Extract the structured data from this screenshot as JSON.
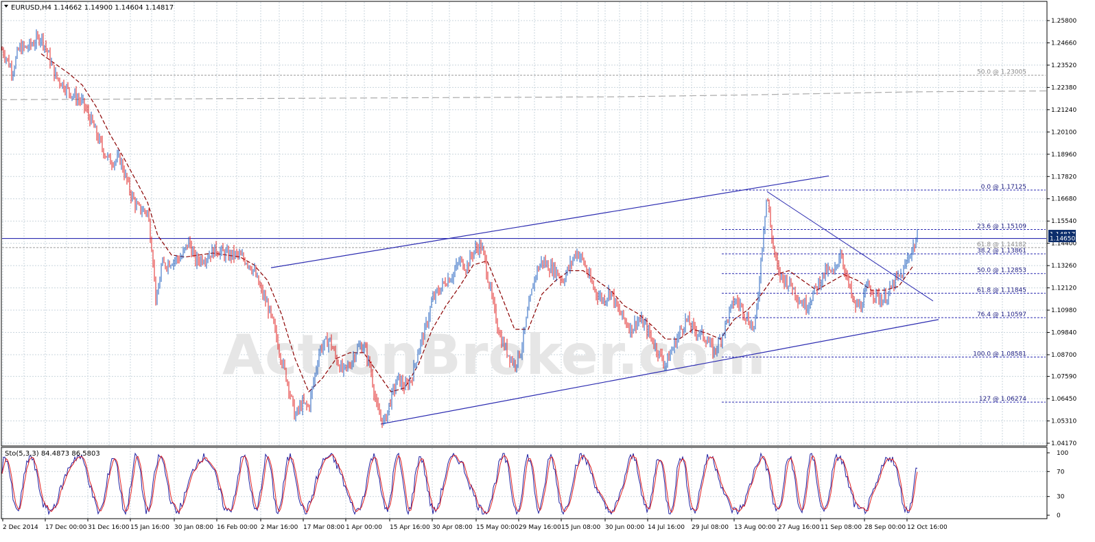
{
  "chart_data": [
    {
      "type": "candlestick",
      "title": "EURUSD,H4  1.14662 1.14900 1.14604 1.14817",
      "header": {
        "symbol": "EURUSD,H4",
        "ohlc": "1.14662 1.14900 1.14604 1.14817"
      },
      "y_ticks": [
        "1.25800",
        "1.24660",
        "1.23520",
        "1.22380",
        "1.21240",
        "1.20100",
        "1.18960",
        "1.17820",
        "1.16680",
        "1.15540",
        "1.14400",
        "1.13260",
        "1.12120",
        "1.10980",
        "1.09840",
        "1.08700",
        "1.07590",
        "1.06450",
        "1.05310",
        "1.04170"
      ],
      "ylim": [
        1.0417,
        1.258
      ],
      "x_ticks": [
        "2 Dec 2014",
        "17 Dec 00:00",
        "31 Dec 16:00",
        "15 Jan 16:00",
        "30 Jan 08:00",
        "16 Feb 00:00",
        "2 Mar 16:00",
        "17 Mar 08:00",
        "1 Apr 00:00",
        "15 Apr 16:00",
        "30 Apr 08:00",
        "15 May 00:00",
        "29 May 16:00",
        "15 Jun 08:00",
        "30 Jun 00:00",
        "14 Jul 16:00",
        "29 Jul 08:00",
        "13 Aug 00:00",
        "27 Aug 16:00",
        "11 Sep 08:00",
        "28 Sep 00:00",
        "12 Oct 16:00"
      ],
      "current_price": "1.14650",
      "current_price_overlap": "1.14817",
      "price_path": [
        [
          0,
          1.245
        ],
        [
          8,
          1.24
        ],
        [
          18,
          1.232
        ],
        [
          28,
          1.244
        ],
        [
          40,
          1.244
        ],
        [
          50,
          1.247
        ],
        [
          60,
          1.25
        ],
        [
          68,
          1.243
        ],
        [
          80,
          1.23
        ],
        [
          100,
          1.222
        ],
        [
          120,
          1.216
        ],
        [
          135,
          1.205
        ],
        [
          140,
          1.2
        ],
        [
          150,
          1.192
        ],
        [
          160,
          1.186
        ],
        [
          175,
          1.187
        ],
        [
          190,
          1.17
        ],
        [
          200,
          1.162
        ],
        [
          215,
          1.16
        ],
        [
          222,
          1.14
        ],
        [
          228,
          1.112
        ],
        [
          235,
          1.132
        ],
        [
          250,
          1.135
        ],
        [
          265,
          1.137
        ],
        [
          275,
          1.145
        ],
        [
          285,
          1.135
        ],
        [
          300,
          1.137
        ],
        [
          315,
          1.141
        ],
        [
          330,
          1.138
        ],
        [
          345,
          1.138
        ],
        [
          360,
          1.135
        ],
        [
          370,
          1.13
        ],
        [
          380,
          1.12
        ],
        [
          390,
          1.112
        ],
        [
          400,
          1.1
        ],
        [
          410,
          1.085
        ],
        [
          420,
          1.072
        ],
        [
          430,
          1.055
        ],
        [
          440,
          1.062
        ],
        [
          450,
          1.06
        ],
        [
          458,
          1.075
        ],
        [
          466,
          1.09
        ],
        [
          480,
          1.095
        ],
        [
          490,
          1.085
        ],
        [
          500,
          1.078
        ],
        [
          510,
          1.082
        ],
        [
          520,
          1.09
        ],
        [
          530,
          1.092
        ],
        [
          540,
          1.08
        ],
        [
          550,
          1.058
        ],
        [
          560,
          1.052
        ],
        [
          570,
          1.065
        ],
        [
          580,
          1.075
        ],
        [
          590,
          1.07
        ],
        [
          600,
          1.075
        ],
        [
          610,
          1.09
        ],
        [
          620,
          1.1
        ],
        [
          630,
          1.115
        ],
        [
          640,
          1.12
        ],
        [
          650,
          1.125
        ],
        [
          660,
          1.128
        ],
        [
          670,
          1.135
        ],
        [
          680,
          1.132
        ],
        [
          690,
          1.14
        ],
        [
          700,
          1.143
        ],
        [
          705,
          1.138
        ],
        [
          712,
          1.125
        ],
        [
          720,
          1.11
        ],
        [
          730,
          1.095
        ],
        [
          740,
          1.088
        ],
        [
          750,
          1.082
        ],
        [
          760,
          1.09
        ],
        [
          770,
          1.11
        ],
        [
          780,
          1.128
        ],
        [
          790,
          1.135
        ],
        [
          800,
          1.132
        ],
        [
          810,
          1.13
        ],
        [
          820,
          1.125
        ],
        [
          830,
          1.132
        ],
        [
          840,
          1.14
        ],
        [
          850,
          1.135
        ],
        [
          860,
          1.125
        ],
        [
          870,
          1.118
        ],
        [
          880,
          1.115
        ],
        [
          890,
          1.12
        ],
        [
          900,
          1.11
        ],
        [
          910,
          1.105
        ],
        [
          920,
          1.1
        ],
        [
          930,
          1.105
        ],
        [
          940,
          1.102
        ],
        [
          950,
          1.095
        ],
        [
          960,
          1.088
        ],
        [
          970,
          1.082
        ],
        [
          980,
          1.09
        ],
        [
          990,
          1.098
        ],
        [
          1000,
          1.105
        ],
        [
          1010,
          1.1
        ],
        [
          1020,
          1.098
        ],
        [
          1030,
          1.095
        ],
        [
          1040,
          1.088
        ],
        [
          1050,
          1.095
        ],
        [
          1060,
          1.105
        ],
        [
          1070,
          1.115
        ],
        [
          1080,
          1.112
        ],
        [
          1090,
          1.105
        ],
        [
          1100,
          1.1
        ],
        [
          1105,
          1.118
        ],
        [
          1110,
          1.14
        ],
        [
          1115,
          1.16
        ],
        [
          1118,
          1.17
        ],
        [
          1122,
          1.155
        ],
        [
          1128,
          1.14
        ],
        [
          1135,
          1.128
        ],
        [
          1145,
          1.125
        ],
        [
          1155,
          1.122
        ],
        [
          1165,
          1.115
        ],
        [
          1175,
          1.112
        ],
        [
          1185,
          1.118
        ],
        [
          1195,
          1.125
        ],
        [
          1205,
          1.13
        ],
        [
          1215,
          1.128
        ],
        [
          1225,
          1.14
        ],
        [
          1235,
          1.125
        ],
        [
          1245,
          1.112
        ],
        [
          1255,
          1.112
        ],
        [
          1265,
          1.122
        ],
        [
          1275,
          1.118
        ],
        [
          1285,
          1.115
        ],
        [
          1295,
          1.118
        ],
        [
          1305,
          1.125
        ],
        [
          1315,
          1.128
        ],
        [
          1325,
          1.138
        ],
        [
          1335,
          1.145
        ],
        [
          1340,
          1.148
        ]
      ],
      "moving_average": {
        "label": "",
        "path": [
          [
            60,
            1.241
          ],
          [
            80,
            1.236
          ],
          [
            100,
            1.231
          ],
          [
            120,
            1.225
          ],
          [
            140,
            1.214
          ],
          [
            160,
            1.2
          ],
          [
            180,
            1.188
          ],
          [
            200,
            1.175
          ],
          [
            215,
            1.165
          ],
          [
            230,
            1.148
          ],
          [
            250,
            1.138
          ],
          [
            270,
            1.137
          ],
          [
            290,
            1.138
          ],
          [
            310,
            1.139
          ],
          [
            330,
            1.138
          ],
          [
            350,
            1.137
          ],
          [
            370,
            1.133
          ],
          [
            390,
            1.125
          ],
          [
            410,
            1.108
          ],
          [
            430,
            1.085
          ],
          [
            450,
            1.068
          ],
          [
            470,
            1.075
          ],
          [
            490,
            1.085
          ],
          [
            510,
            1.088
          ],
          [
            530,
            1.088
          ],
          [
            550,
            1.078
          ],
          [
            570,
            1.068
          ],
          [
            590,
            1.07
          ],
          [
            610,
            1.082
          ],
          [
            630,
            1.1
          ],
          [
            650,
            1.112
          ],
          [
            670,
            1.122
          ],
          [
            690,
            1.133
          ],
          [
            710,
            1.135
          ],
          [
            730,
            1.118
          ],
          [
            750,
            1.1
          ],
          [
            770,
            1.1
          ],
          [
            790,
            1.118
          ],
          [
            810,
            1.125
          ],
          [
            830,
            1.13
          ],
          [
            850,
            1.13
          ],
          [
            870,
            1.125
          ],
          [
            890,
            1.12
          ],
          [
            910,
            1.112
          ],
          [
            930,
            1.108
          ],
          [
            950,
            1.102
          ],
          [
            970,
            1.095
          ],
          [
            990,
            1.095
          ],
          [
            1010,
            1.1
          ],
          [
            1030,
            1.098
          ],
          [
            1050,
            1.095
          ],
          [
            1070,
            1.105
          ],
          [
            1090,
            1.11
          ],
          [
            1110,
            1.118
          ],
          [
            1130,
            1.128
          ],
          [
            1150,
            1.13
          ],
          [
            1170,
            1.125
          ],
          [
            1190,
            1.12
          ],
          [
            1210,
            1.124
          ],
          [
            1230,
            1.128
          ],
          [
            1250,
            1.125
          ],
          [
            1270,
            1.12
          ],
          [
            1290,
            1.12
          ],
          [
            1310,
            1.122
          ],
          [
            1330,
            1.132
          ]
        ]
      },
      "long_ma": {
        "label": "",
        "path": [
          [
            0,
            1.2175
          ],
          [
            300,
            1.218
          ],
          [
            600,
            1.2185
          ],
          [
            900,
            1.219
          ],
          [
            1100,
            1.22
          ],
          [
            1330,
            1.2215
          ],
          [
            1525,
            1.222
          ]
        ]
      },
      "horizontal_line": 1.1465,
      "channel_upper": [
        [
          395,
          1.1315
        ],
        [
          1208,
          1.1785
        ]
      ],
      "channel_lower": [
        [
          555,
          1.0515
        ],
        [
          1368,
          1.105
        ]
      ],
      "downtrend_line": [
        [
          1118,
          1.1705
        ],
        [
          1360,
          1.1145
        ]
      ],
      "fib_upper": [
        {
          "label": "50.0 @ 1.23005",
          "value": 1.23005
        }
      ],
      "fib_lower": [
        {
          "label": "0.0 @ 1.17125",
          "value": 1.17125
        },
        {
          "label": "23.6 @ 1.15109",
          "value": 1.15109
        },
        {
          "label": "38.2 @ 1.13861",
          "value": 1.13861
        },
        {
          "label": "50.0 @ 1.12853",
          "value": 1.12853
        },
        {
          "label": "61.8 @ 1.11845",
          "value": 1.11845
        },
        {
          "label": "76.4 @ 1.10597",
          "value": 1.10597
        },
        {
          "label": "100.0 @ 1.08581",
          "value": 1.08581
        },
        {
          "label": "127 @ 1.06274",
          "value": 1.06274
        }
      ],
      "fib_extra": [
        {
          "label": "61.8 @ 1.14182",
          "value": 1.14182
        }
      ],
      "watermark": "ActionBroker.com"
    },
    {
      "type": "line",
      "title": "Sto(5,3,3) 84.4873 86.5803",
      "y_ticks": [
        "100",
        "70",
        "30",
        "0"
      ],
      "ylim": [
        0,
        100
      ],
      "series": [
        {
          "name": "",
          "color": "#1f1fa0"
        },
        {
          "name": "",
          "color": "#e02020"
        }
      ]
    }
  ],
  "colors": {
    "up": "#1f5fbf",
    "down": "#e02020",
    "ma": "#8b0000",
    "trend": "#2a2ab0",
    "grid": "#c8d4dc"
  }
}
